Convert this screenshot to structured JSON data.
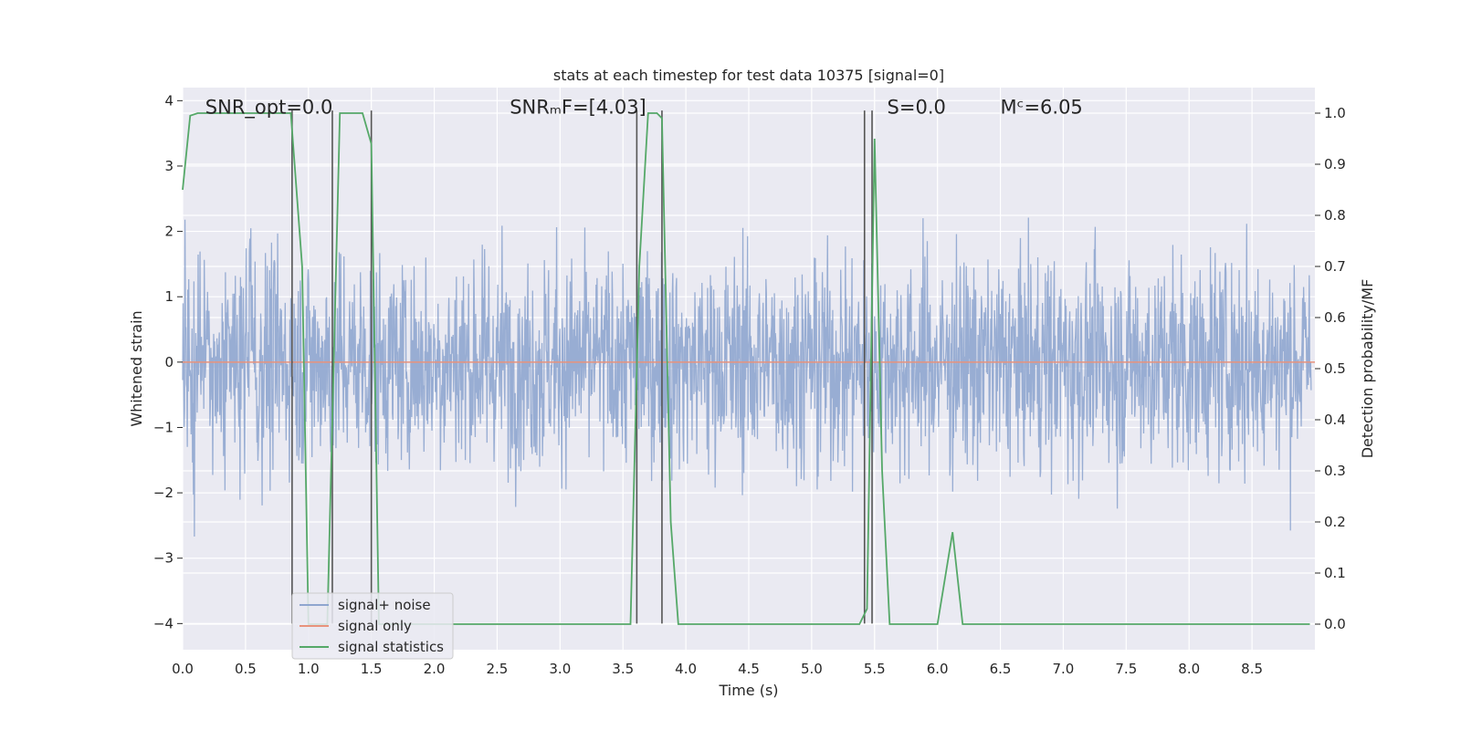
{
  "chart_data": {
    "type": "line",
    "title": "stats at each timestep for test data 10375 [signal=0]",
    "xlabel": "Time (s)",
    "ylabel": "Whitened strain",
    "y2label": "Detection probability/MF",
    "xlim": [
      0.0,
      9.0
    ],
    "ylim": [
      -4.4,
      4.2
    ],
    "y2lim": [
      -0.05,
      1.05
    ],
    "xticks": [
      "0.0",
      "0.5",
      "1.0",
      "1.5",
      "2.0",
      "2.5",
      "3.0",
      "3.5",
      "4.0",
      "4.5",
      "5.0",
      "5.5",
      "6.0",
      "6.5",
      "7.0",
      "7.5",
      "8.0",
      "8.5"
    ],
    "yticks": [
      "4",
      "3",
      "2",
      "1",
      "0",
      "−1",
      "−2",
      "−3",
      "−4"
    ],
    "y2ticks": [
      "1.0",
      "0.9",
      "0.8",
      "0.7",
      "0.6",
      "0.5",
      "0.4",
      "0.3",
      "0.2",
      "0.1",
      "0.0"
    ],
    "grid": true,
    "legend_position": "lower-left",
    "annotations": [
      {
        "text": "SNR_opt=0.0",
        "x": 0.18,
        "y": 3.9
      },
      {
        "text": "SNRₘF=[4.03]",
        "x": 2.6,
        "y": 3.9
      },
      {
        "text": "S=0.0",
        "x": 5.6,
        "y": 3.9
      },
      {
        "text": "Mᶜ=6.05",
        "x": 6.5,
        "y": 3.9
      }
    ],
    "series": [
      {
        "name": "signal+ noise",
        "color": "#8fa6cf",
        "axis": "left",
        "kind": "noise",
        "approx_range": [
          -4.0,
          4.0
        ],
        "typical_envelope": [
          -2.3,
          2.5
        ]
      },
      {
        "name": "signal only",
        "color": "#e8927c",
        "axis": "left",
        "x": [
          0.0,
          9.0
        ],
        "y": [
          0.0,
          0.0
        ]
      },
      {
        "name": "signal statistics",
        "color": "#55a868",
        "axis": "right",
        "x": [
          0.0,
          0.06,
          0.12,
          0.5,
          0.86,
          0.95,
          1.0,
          1.08,
          1.15,
          1.25,
          1.3,
          1.43,
          1.5,
          1.56,
          1.62,
          3.5,
          3.56,
          3.63,
          3.7,
          3.77,
          3.81,
          3.88,
          3.94,
          5.38,
          5.44,
          5.5,
          5.56,
          5.62,
          6.0,
          6.12,
          6.2,
          8.96
        ],
        "y": [
          0.85,
          0.995,
          1.0,
          1.0,
          1.0,
          0.7,
          0.0,
          0.0,
          0.0,
          1.0,
          1.0,
          1.0,
          0.94,
          0.0,
          0.0,
          0.0,
          0.0,
          0.7,
          1.0,
          1.0,
          0.99,
          0.2,
          0.0,
          0.0,
          0.03,
          0.95,
          0.3,
          0.0,
          0.0,
          0.18,
          0.0,
          0.0
        ]
      },
      {
        "name": "event markers",
        "color": "#555555",
        "axis": "left",
        "kind": "vlines",
        "x": [
          0.87,
          1.19,
          1.5,
          3.61,
          3.81,
          5.42,
          5.48
        ]
      }
    ]
  }
}
